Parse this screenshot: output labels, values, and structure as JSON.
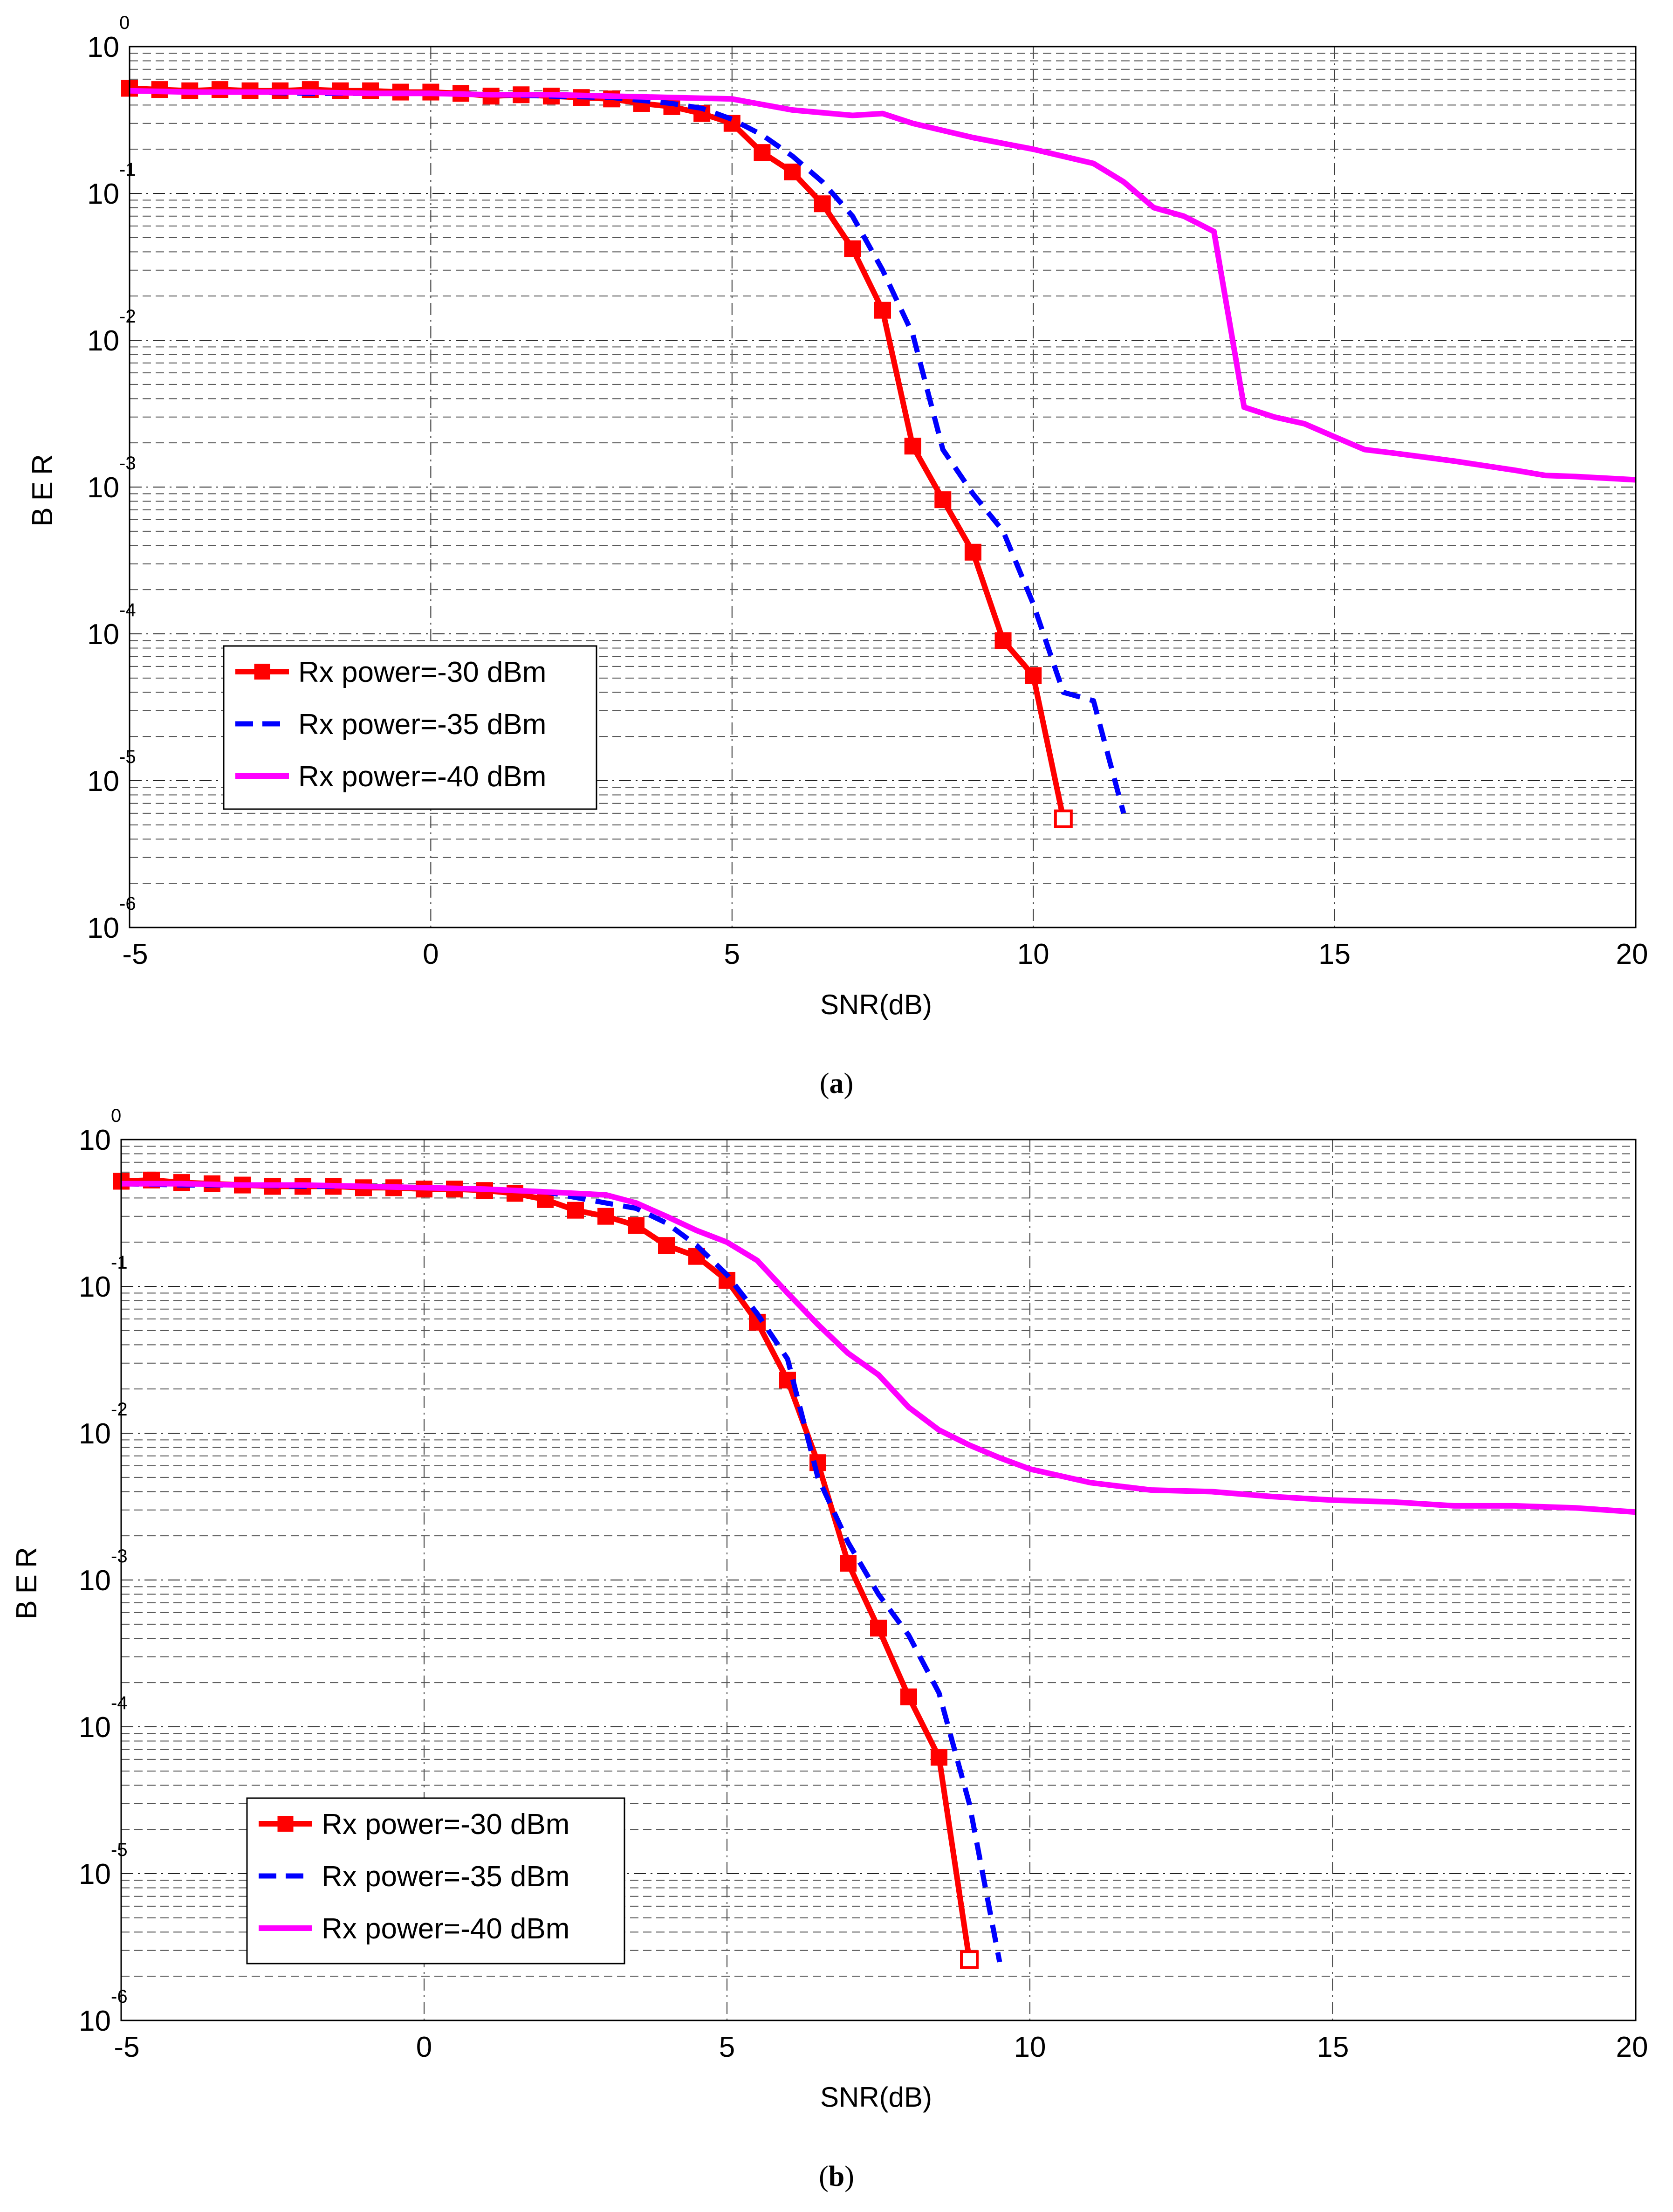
{
  "chart_data": [
    {
      "type": "line",
      "caption": "(a)",
      "caption_letter": "a",
      "xlabel": "SNR(dB)",
      "ylabel": "BER",
      "xlim": [
        -5,
        20
      ],
      "ylim": [
        1e-06,
        1
      ],
      "yscale": "log",
      "grid": true,
      "x_ticks": [
        "-5",
        "0",
        "5",
        "10",
        "15",
        "20"
      ],
      "y_ticks": [
        {
          "base": "10",
          "exp": "0"
        },
        {
          "base": "10",
          "exp": "-1"
        },
        {
          "base": "10",
          "exp": "-2"
        },
        {
          "base": "10",
          "exp": "-3"
        },
        {
          "base": "10",
          "exp": "-4"
        },
        {
          "base": "10",
          "exp": "-5"
        },
        {
          "base": "10",
          "exp": "-6"
        }
      ],
      "legend_position": "lower-left",
      "series": [
        {
          "name": "Rx power=-30 dBm",
          "color": "#ff0000",
          "style": "solid-square",
          "x": [
            -5,
            -4.5,
            -4,
            -3.5,
            -3,
            -2.5,
            -2,
            -1.5,
            -1,
            -0.5,
            0,
            0.5,
            1,
            1.5,
            2,
            2.5,
            3,
            3.5,
            4,
            4.5,
            5,
            5.5,
            6,
            6.5,
            7,
            7.5,
            8,
            8.5,
            9,
            9.5,
            10,
            10.5
          ],
          "y": [
            0.52,
            0.51,
            0.5,
            0.51,
            0.5,
            0.5,
            0.51,
            0.5,
            0.5,
            0.49,
            0.49,
            0.48,
            0.46,
            0.47,
            0.46,
            0.45,
            0.44,
            0.41,
            0.39,
            0.35,
            0.3,
            0.19,
            0.14,
            0.085,
            0.042,
            0.016,
            0.0019,
            0.00082,
            0.00036,
            9e-05,
            5.2e-05,
            5.5e-06
          ]
        },
        {
          "name": "Rx power=-35 dBm",
          "color": "#0000ff",
          "style": "dashed",
          "x": [
            -5,
            -4,
            -3,
            -2,
            -1,
            0,
            1,
            2,
            3,
            3.5,
            4,
            4.5,
            5,
            5.5,
            6,
            6.5,
            7,
            7.5,
            8,
            8.5,
            9,
            9.5,
            10,
            10.5,
            11,
            11.5
          ],
          "y": [
            0.5,
            0.49,
            0.49,
            0.48,
            0.48,
            0.48,
            0.47,
            0.46,
            0.45,
            0.43,
            0.41,
            0.38,
            0.32,
            0.25,
            0.18,
            0.12,
            0.07,
            0.03,
            0.011,
            0.0018,
            0.0009,
            0.0005,
            0.00016,
            4e-05,
            3.5e-05,
            6e-06
          ]
        },
        {
          "name": "Rx power=-40 dBm",
          "color": "#ff00ff",
          "style": "solid",
          "x": [
            -5,
            -4,
            -3,
            -2,
            -1,
            0,
            1,
            2,
            3,
            4,
            5,
            6,
            7,
            7.5,
            8,
            9,
            10,
            11,
            11.5,
            12,
            12.5,
            13,
            13.5,
            14,
            14.5,
            15,
            15.5,
            16,
            17,
            18,
            18.5,
            19,
            20
          ],
          "y": [
            0.5,
            0.49,
            0.49,
            0.49,
            0.48,
            0.48,
            0.47,
            0.47,
            0.46,
            0.45,
            0.44,
            0.37,
            0.34,
            0.35,
            0.3,
            0.24,
            0.2,
            0.16,
            0.12,
            0.08,
            0.07,
            0.055,
            0.0035,
            0.003,
            0.0027,
            0.0022,
            0.0018,
            0.0017,
            0.0015,
            0.0013,
            0.0012,
            0.00118,
            0.00112
          ]
        }
      ]
    },
    {
      "type": "line",
      "caption": "(b)",
      "caption_letter": "b",
      "xlabel": "SNR(dB)",
      "ylabel": "BER",
      "xlim": [
        -5,
        20
      ],
      "ylim": [
        1e-06,
        1
      ],
      "yscale": "log",
      "grid": true,
      "x_ticks": [
        "-5",
        "0",
        "5",
        "10",
        "15",
        "20"
      ],
      "y_ticks": [
        {
          "base": "10",
          "exp": "0"
        },
        {
          "base": "10",
          "exp": "-1"
        },
        {
          "base": "10",
          "exp": "-2"
        },
        {
          "base": "10",
          "exp": "-3"
        },
        {
          "base": "10",
          "exp": "-4"
        },
        {
          "base": "10",
          "exp": "-5"
        },
        {
          "base": "10",
          "exp": "-6"
        }
      ],
      "legend_position": "lower-left",
      "series": [
        {
          "name": "Rx power=-30 dBm",
          "color": "#ff0000",
          "style": "solid-square",
          "x": [
            -5,
            -4.5,
            -4,
            -3.5,
            -3,
            -2.5,
            -2,
            -1.5,
            -1,
            -0.5,
            0,
            0.5,
            1,
            1.5,
            2,
            2.5,
            3,
            3.5,
            4,
            4.5,
            5,
            5.5,
            6,
            6.5,
            7,
            7.5,
            8,
            8.5,
            9
          ],
          "y": [
            0.52,
            0.53,
            0.51,
            0.5,
            0.49,
            0.48,
            0.48,
            0.48,
            0.47,
            0.47,
            0.46,
            0.46,
            0.45,
            0.43,
            0.39,
            0.33,
            0.3,
            0.26,
            0.19,
            0.16,
            0.11,
            0.057,
            0.023,
            0.0063,
            0.0013,
            0.00047,
            0.00016,
            6.2e-05,
            2.6e-06
          ]
        },
        {
          "name": "Rx power=-35 dBm",
          "color": "#0000ff",
          "style": "dashed",
          "x": [
            -5,
            -4,
            -3,
            -2,
            -1,
            0,
            1,
            2,
            3,
            3.5,
            4,
            4.5,
            5,
            5.5,
            6,
            6.5,
            7,
            7.5,
            8,
            8.5,
            9,
            9.5
          ],
          "y": [
            0.5,
            0.49,
            0.49,
            0.48,
            0.48,
            0.47,
            0.46,
            0.44,
            0.37,
            0.34,
            0.27,
            0.19,
            0.12,
            0.065,
            0.032,
            0.005,
            0.0018,
            0.0008,
            0.00042,
            0.00017,
            3e-05,
            2.5e-06
          ]
        },
        {
          "name": "Rx power=-40 dBm",
          "color": "#ff00ff",
          "style": "solid",
          "x": [
            -5,
            -4,
            -3,
            -2,
            -1,
            0,
            1,
            2,
            3,
            3.5,
            4,
            4.5,
            5,
            5.5,
            6,
            6.5,
            7,
            7.5,
            8,
            8.5,
            9,
            9.5,
            10,
            11,
            12,
            13,
            14,
            15,
            16,
            17,
            18,
            19,
            20
          ],
          "y": [
            0.5,
            0.5,
            0.49,
            0.49,
            0.48,
            0.47,
            0.46,
            0.44,
            0.42,
            0.37,
            0.3,
            0.24,
            0.2,
            0.15,
            0.09,
            0.055,
            0.035,
            0.025,
            0.015,
            0.0105,
            0.0083,
            0.0068,
            0.0057,
            0.0046,
            0.0041,
            0.004,
            0.0037,
            0.0035,
            0.0034,
            0.0032,
            0.0032,
            0.0031,
            0.0029
          ]
        }
      ]
    }
  ]
}
